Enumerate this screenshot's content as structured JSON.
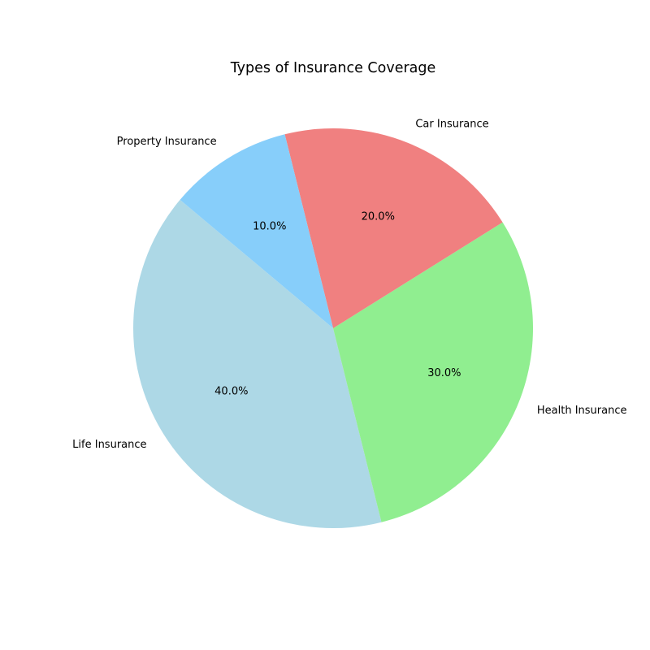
{
  "chart_data": {
    "type": "pie",
    "title": "Types of Insurance Coverage",
    "categories": [
      "Life Insurance",
      "Health Insurance",
      "Car Insurance",
      "Property Insurance"
    ],
    "values": [
      40,
      30,
      20,
      10
    ],
    "percent_labels": [
      "40.0%",
      "30.0%",
      "20.0%",
      "10.0%"
    ],
    "colors": [
      "#add8e6",
      "#90ee90",
      "#f08080",
      "#87cefa"
    ],
    "start_angle_deg": 140,
    "direction": "counterclockwise",
    "legend": "none"
  }
}
